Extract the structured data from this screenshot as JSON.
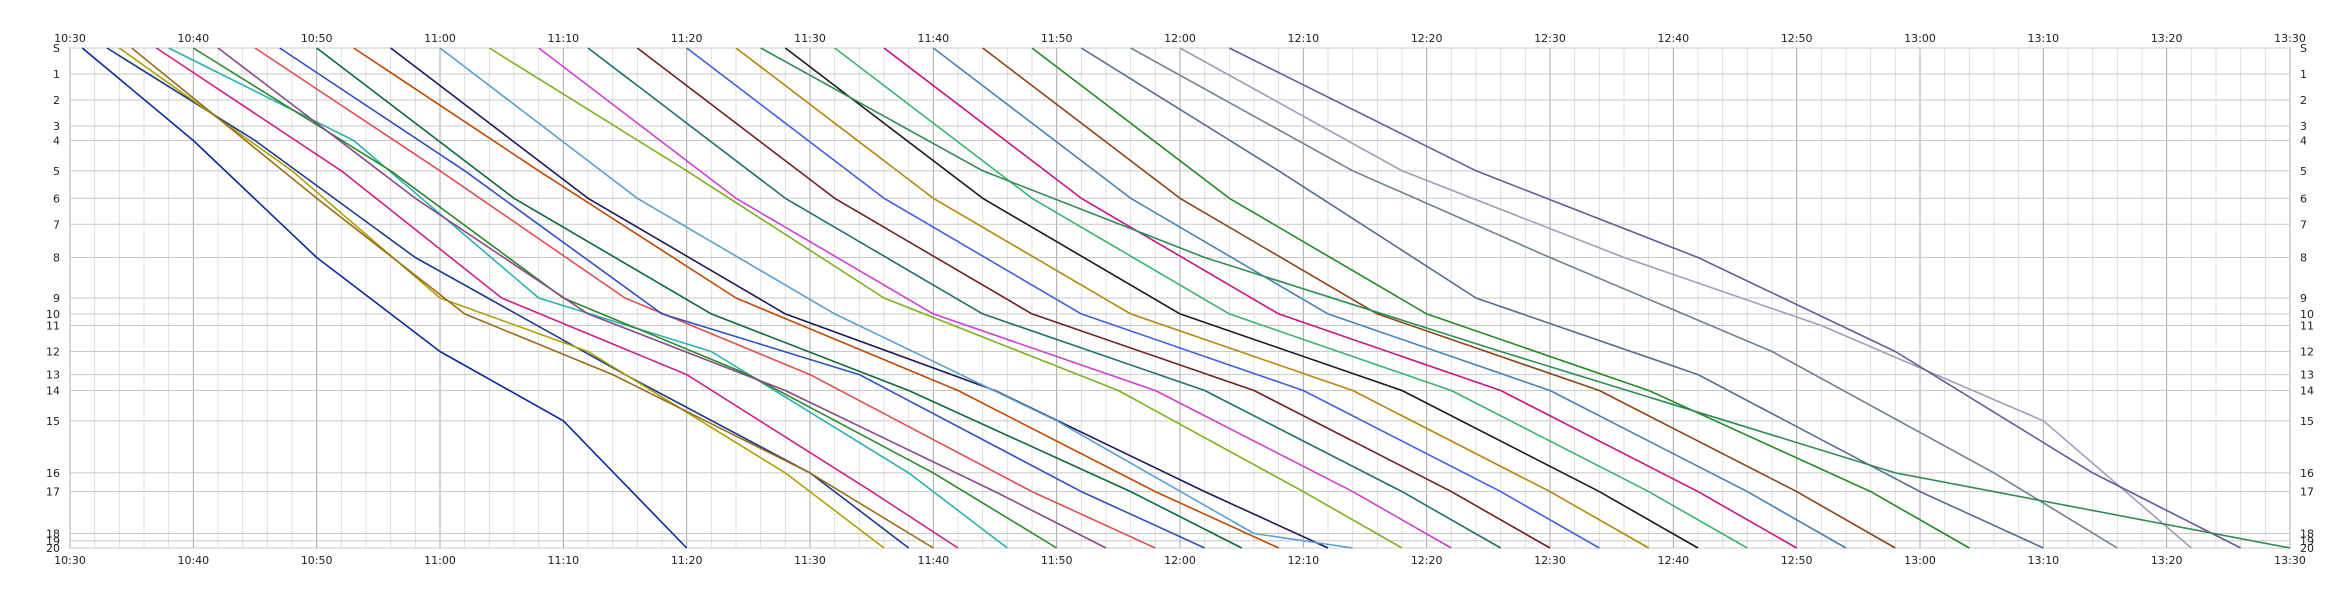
{
  "chart_data": {
    "type": "line",
    "title": "",
    "xlabel": "",
    "ylabel": "",
    "grid": true,
    "x_ticks": [
      "10:30",
      "10:40",
      "10:50",
      "11:00",
      "11:10",
      "11:20",
      "11:30",
      "11:40",
      "11:50",
      "12:00",
      "12:10",
      "12:20",
      "12:30",
      "12:40",
      "12:50",
      "13:00",
      "13:10",
      "13:20",
      "13:30"
    ],
    "xlim": [
      "10:30",
      "13:30"
    ],
    "y_ticks": [
      "S",
      "1",
      "2",
      "3",
      "4",
      "5",
      "6",
      "7",
      "8",
      "9",
      "10",
      "11",
      "12",
      "13",
      "14",
      "15",
      "16",
      "17",
      "18",
      "19",
      "20"
    ],
    "y_tick_positions": [
      0,
      1.8,
      3.6,
      5.4,
      6.4,
      8.5,
      10.4,
      12.2,
      14.5,
      17.3,
      18.4,
      19.2,
      21.0,
      22.6,
      23.7,
      25.8,
      29.4,
      30.7,
      33.6,
      34.1,
      34.6
    ],
    "start": "S",
    "finish": "20",
    "series": [
      {
        "name": "",
        "color": "#0a2a9a",
        "points": [
          [
            "10:31",
            "S"
          ],
          [
            "10:40",
            "4"
          ],
          [
            "10:50",
            "8"
          ],
          [
            "11:00",
            "12"
          ],
          [
            "11:10",
            "15"
          ],
          [
            "11:20",
            "20"
          ]
        ]
      },
      {
        "name": "",
        "color": "#1a3a8a",
        "points": [
          [
            "10:33",
            "S"
          ],
          [
            "10:45",
            "4"
          ],
          [
            "10:58",
            "8"
          ],
          [
            "11:15",
            "13"
          ],
          [
            "11:30",
            "16"
          ],
          [
            "11:38",
            "20"
          ]
        ]
      },
      {
        "name": "",
        "color": "#b0a000",
        "points": [
          [
            "10:34",
            "S"
          ],
          [
            "10:48",
            "5"
          ],
          [
            "11:00",
            "9"
          ],
          [
            "11:12",
            "12"
          ],
          [
            "11:28",
            "16"
          ],
          [
            "11:36",
            "20"
          ]
        ]
      },
      {
        "name": "",
        "color": "#9c6b1a",
        "points": [
          [
            "10:35",
            "S"
          ],
          [
            "10:50",
            "6"
          ],
          [
            "11:02",
            "10"
          ],
          [
            "11:14",
            "13"
          ],
          [
            "11:30",
            "16"
          ],
          [
            "11:40",
            "20"
          ]
        ]
      },
      {
        "name": "",
        "color": "#cc2288",
        "points": [
          [
            "10:37",
            "S"
          ],
          [
            "10:52",
            "5"
          ],
          [
            "11:05",
            "9"
          ],
          [
            "11:20",
            "13"
          ],
          [
            "11:35",
            "17"
          ],
          [
            "11:42",
            "20"
          ]
        ]
      },
      {
        "name": "",
        "color": "#2ab0b0",
        "points": [
          [
            "10:38",
            "S"
          ],
          [
            "10:53",
            "4"
          ],
          [
            "11:08",
            "9"
          ],
          [
            "11:22",
            "12"
          ],
          [
            "11:38",
            "16"
          ],
          [
            "11:46",
            "20"
          ]
        ]
      },
      {
        "name": "",
        "color": "#2a8a2a",
        "points": [
          [
            "10:40",
            "S"
          ],
          [
            "10:56",
            "5"
          ],
          [
            "11:10",
            "9"
          ],
          [
            "11:25",
            "13"
          ],
          [
            "11:40",
            "16"
          ],
          [
            "11:50",
            "20"
          ]
        ]
      },
      {
        "name": "",
        "color": "#8a4a8a",
        "points": [
          [
            "10:42",
            "S"
          ],
          [
            "10:58",
            "6"
          ],
          [
            "11:12",
            "10"
          ],
          [
            "11:28",
            "14"
          ],
          [
            "11:45",
            "17"
          ],
          [
            "11:54",
            "20"
          ]
        ]
      },
      {
        "name": "",
        "color": "#e05050",
        "points": [
          [
            "10:45",
            "S"
          ],
          [
            "11:00",
            "5"
          ],
          [
            "11:15",
            "9"
          ],
          [
            "11:30",
            "13"
          ],
          [
            "11:48",
            "17"
          ],
          [
            "11:58",
            "20"
          ]
        ]
      },
      {
        "name": "",
        "color": "#3050c0",
        "points": [
          [
            "10:47",
            "S"
          ],
          [
            "11:02",
            "5"
          ],
          [
            "11:18",
            "10"
          ],
          [
            "11:34",
            "13"
          ],
          [
            "11:52",
            "17"
          ],
          [
            "12:02",
            "20"
          ]
        ]
      },
      {
        "name": "",
        "color": "#0a6a3a",
        "points": [
          [
            "10:50",
            "S"
          ],
          [
            "11:06",
            "6"
          ],
          [
            "11:22",
            "10"
          ],
          [
            "11:38",
            "14"
          ],
          [
            "11:56",
            "17"
          ],
          [
            "12:05",
            "20"
          ]
        ]
      },
      {
        "name": "",
        "color": "#c04a00",
        "points": [
          [
            "10:53",
            "S"
          ],
          [
            "11:08",
            "5"
          ],
          [
            "11:24",
            "9"
          ],
          [
            "11:42",
            "14"
          ],
          [
            "11:58",
            "17"
          ],
          [
            "12:08",
            "20"
          ]
        ]
      },
      {
        "name": "",
        "color": "#1a1a5a",
        "points": [
          [
            "10:56",
            "S"
          ],
          [
            "11:12",
            "6"
          ],
          [
            "11:28",
            "10"
          ],
          [
            "11:45",
            "14"
          ],
          [
            "12:02",
            "17"
          ],
          [
            "12:12",
            "20"
          ]
        ]
      },
      {
        "name": "",
        "color": "#5aa0d0",
        "points": [
          [
            "11:00",
            "S"
          ],
          [
            "11:16",
            "6"
          ],
          [
            "11:32",
            "10"
          ],
          [
            "11:50",
            "15"
          ],
          [
            "12:06",
            "18"
          ],
          [
            "12:14",
            "20"
          ]
        ]
      },
      {
        "name": "",
        "color": "#80b020",
        "points": [
          [
            "11:04",
            "S"
          ],
          [
            "11:20",
            "5"
          ],
          [
            "11:36",
            "9"
          ],
          [
            "11:55",
            "14"
          ],
          [
            "12:10",
            "17"
          ],
          [
            "12:18",
            "20"
          ]
        ]
      },
      {
        "name": "",
        "color": "#d040d0",
        "points": [
          [
            "11:08",
            "S"
          ],
          [
            "11:24",
            "6"
          ],
          [
            "11:40",
            "10"
          ],
          [
            "11:58",
            "14"
          ],
          [
            "12:14",
            "17"
          ],
          [
            "12:22",
            "20"
          ]
        ]
      },
      {
        "name": "",
        "color": "#207070",
        "points": [
          [
            "11:12",
            "S"
          ],
          [
            "11:28",
            "6"
          ],
          [
            "11:44",
            "10"
          ],
          [
            "12:02",
            "14"
          ],
          [
            "12:18",
            "17"
          ],
          [
            "12:26",
            "20"
          ]
        ]
      },
      {
        "name": "",
        "color": "#702020",
        "points": [
          [
            "11:16",
            "S"
          ],
          [
            "11:32",
            "6"
          ],
          [
            "11:48",
            "10"
          ],
          [
            "12:06",
            "14"
          ],
          [
            "12:22",
            "17"
          ],
          [
            "12:30",
            "20"
          ]
        ]
      },
      {
        "name": "",
        "color": "#4060e0",
        "points": [
          [
            "11:20",
            "S"
          ],
          [
            "11:36",
            "6"
          ],
          [
            "11:52",
            "10"
          ],
          [
            "12:10",
            "14"
          ],
          [
            "12:26",
            "17"
          ],
          [
            "12:34",
            "20"
          ]
        ]
      },
      {
        "name": "",
        "color": "#b8860b",
        "points": [
          [
            "11:24",
            "S"
          ],
          [
            "11:40",
            "6"
          ],
          [
            "11:56",
            "10"
          ],
          [
            "12:14",
            "14"
          ],
          [
            "12:30",
            "17"
          ],
          [
            "12:38",
            "20"
          ]
        ]
      },
      {
        "name": "",
        "color": "#1a1a1a",
        "points": [
          [
            "11:28",
            "S"
          ],
          [
            "11:44",
            "6"
          ],
          [
            "12:00",
            "10"
          ],
          [
            "12:18",
            "14"
          ],
          [
            "12:34",
            "17"
          ],
          [
            "12:42",
            "20"
          ]
        ]
      },
      {
        "name": "",
        "color": "#3cb371",
        "points": [
          [
            "11:32",
            "S"
          ],
          [
            "11:48",
            "6"
          ],
          [
            "12:04",
            "10"
          ],
          [
            "12:22",
            "14"
          ],
          [
            "12:38",
            "17"
          ],
          [
            "12:46",
            "20"
          ]
        ]
      },
      {
        "name": "",
        "color": "#c71585",
        "points": [
          [
            "11:36",
            "S"
          ],
          [
            "11:52",
            "6"
          ],
          [
            "12:08",
            "10"
          ],
          [
            "12:26",
            "14"
          ],
          [
            "12:42",
            "17"
          ],
          [
            "12:50",
            "20"
          ]
        ]
      },
      {
        "name": "",
        "color": "#4682b4",
        "points": [
          [
            "11:40",
            "S"
          ],
          [
            "11:56",
            "6"
          ],
          [
            "12:12",
            "10"
          ],
          [
            "12:30",
            "14"
          ],
          [
            "12:46",
            "17"
          ],
          [
            "12:54",
            "20"
          ]
        ]
      },
      {
        "name": "",
        "color": "#8b4513",
        "points": [
          [
            "11:44",
            "S"
          ],
          [
            "12:00",
            "6"
          ],
          [
            "12:16",
            "10"
          ],
          [
            "12:34",
            "14"
          ],
          [
            "12:50",
            "17"
          ],
          [
            "12:58",
            "20"
          ]
        ]
      },
      {
        "name": "",
        "color": "#228b22",
        "points": [
          [
            "11:48",
            "S"
          ],
          [
            "12:04",
            "6"
          ],
          [
            "12:20",
            "10"
          ],
          [
            "12:38",
            "14"
          ],
          [
            "12:56",
            "17"
          ],
          [
            "13:04",
            "20"
          ]
        ]
      },
      {
        "name": "",
        "color": "#556b8f",
        "points": [
          [
            "11:52",
            "S"
          ],
          [
            "12:08",
            "5"
          ],
          [
            "12:24",
            "9"
          ],
          [
            "12:42",
            "13"
          ],
          [
            "13:00",
            "17"
          ],
          [
            "13:10",
            "20"
          ]
        ]
      },
      {
        "name": "",
        "color": "#708090",
        "points": [
          [
            "11:56",
            "S"
          ],
          [
            "12:14",
            "5"
          ],
          [
            "12:30",
            "8"
          ],
          [
            "12:48",
            "12"
          ],
          [
            "13:06",
            "16"
          ],
          [
            "13:16",
            "20"
          ]
        ]
      },
      {
        "name": "",
        "color": "#9aa0b8",
        "points": [
          [
            "12:00",
            "S"
          ],
          [
            "12:18",
            "5"
          ],
          [
            "12:36",
            "8"
          ],
          [
            "12:52",
            "11"
          ],
          [
            "13:10",
            "15"
          ],
          [
            "13:22",
            "20"
          ]
        ]
      },
      {
        "name": "",
        "color": "#6a5a9a",
        "points": [
          [
            "12:04",
            "S"
          ],
          [
            "12:24",
            "5"
          ],
          [
            "12:42",
            "8"
          ],
          [
            "12:58",
            "12"
          ],
          [
            "13:14",
            "16"
          ],
          [
            "13:26",
            "20"
          ]
        ]
      },
      {
        "name": "",
        "color": "#2e8b57",
        "points": [
          [
            "11:26",
            "S"
          ],
          [
            "11:44",
            "5"
          ],
          [
            "12:02",
            "8"
          ],
          [
            "12:26",
            "12"
          ],
          [
            "12:58",
            "16"
          ],
          [
            "13:30",
            "20"
          ]
        ]
      }
    ]
  }
}
